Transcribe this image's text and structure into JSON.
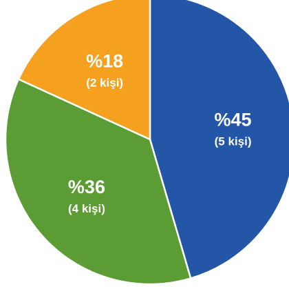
{
  "chart_data": {
    "type": "pie",
    "slices": [
      {
        "value": 45,
        "label": "%45",
        "sublabel": "(5 kişi)",
        "color": "#2456a8"
      },
      {
        "value": 36,
        "label": "%36",
        "sublabel": "(4 kişi)",
        "color": "#5c9c34"
      },
      {
        "value": 18,
        "label": "%18",
        "sublabel": "(2 kişi)",
        "color": "#f6a01f"
      }
    ]
  }
}
